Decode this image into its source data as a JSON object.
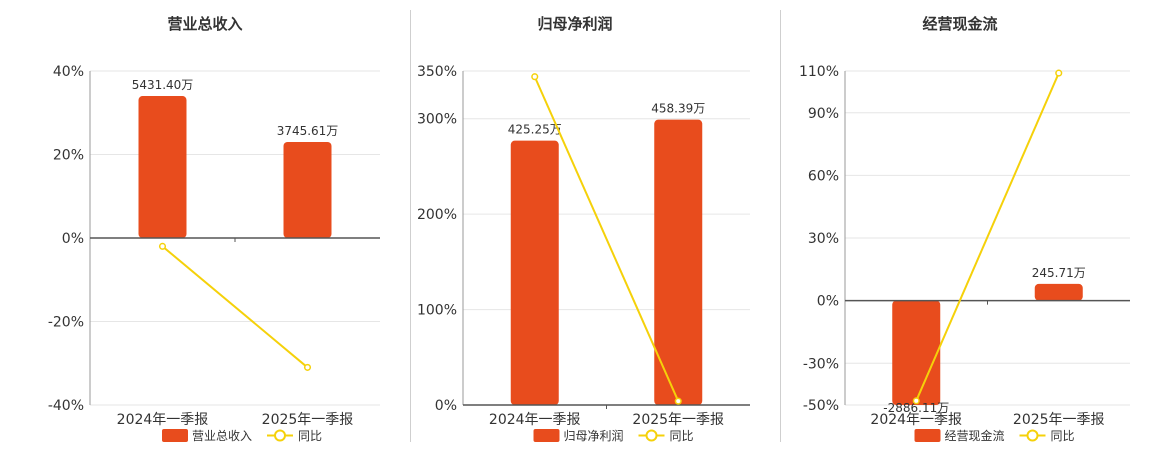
{
  "chart_data": [
    {
      "type": "bar",
      "title": "营业总收入",
      "categories": [
        "2024年一季报",
        "2025年一季报"
      ],
      "bar_labels": [
        "5431.40万",
        "3745.61万"
      ],
      "bar_values": [
        34,
        23
      ],
      "line_values": [
        -2,
        -31
      ],
      "ylim": [
        -40,
        40
      ],
      "ticks": [
        -40,
        -20,
        0,
        20,
        40
      ],
      "tick_labels": [
        "-40%",
        "-20%",
        "0%",
        "20%",
        "40%"
      ],
      "legend": {
        "bar": "营业总收入",
        "line": "同比"
      }
    },
    {
      "type": "bar",
      "title": "归母净利润",
      "categories": [
        "2024年一季报",
        "2025年一季报"
      ],
      "bar_labels": [
        "425.25万",
        "458.39万"
      ],
      "bar_values": [
        277,
        299
      ],
      "line_values": [
        344,
        4
      ],
      "ylim": [
        0,
        350
      ],
      "ticks": [
        0,
        100,
        200,
        300,
        350
      ],
      "tick_labels": [
        "0%",
        "100%",
        "200%",
        "300%",
        "350%"
      ],
      "legend": {
        "bar": "归母净利润",
        "line": "同比"
      }
    },
    {
      "type": "bar",
      "title": "经营现金流",
      "categories": [
        "2024年一季报",
        "2025年一季报"
      ],
      "bar_labels": [
        "-2886.11万",
        "245.71万"
      ],
      "bar_values": [
        -50,
        8
      ],
      "line_values": [
        -48,
        109
      ],
      "ylim": [
        -50,
        110
      ],
      "ticks": [
        -50,
        -30,
        0,
        30,
        60,
        90,
        110
      ],
      "tick_labels": [
        "-50%",
        "-30%",
        "0%",
        "30%",
        "60%",
        "90%",
        "110%"
      ],
      "legend": {
        "bar": "经营现金流",
        "line": "同比"
      }
    }
  ],
  "colors": {
    "bar": "#e84c1d",
    "line": "#f5d10a",
    "axis": "#555555",
    "grid": "#e6e6e6",
    "text": "#333333"
  }
}
